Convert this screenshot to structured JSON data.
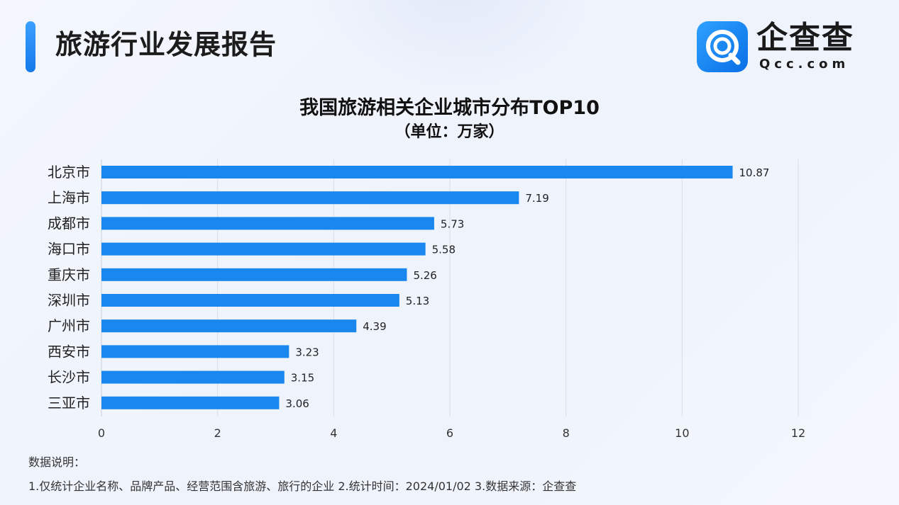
{
  "header": {
    "title": "旅游行业发展报告",
    "logo_name": "企查查",
    "logo_domain": "Qcc.com",
    "accent_color": "#1a7fee"
  },
  "chart_data": {
    "type": "bar",
    "orientation": "horizontal",
    "title": "我国旅游相关企业城市分布TOP10",
    "subtitle": "（单位：万家）",
    "categories": [
      "北京市",
      "上海市",
      "成都市",
      "海口市",
      "重庆市",
      "深圳市",
      "广州市",
      "西安市",
      "长沙市",
      "三亚市"
    ],
    "values": [
      10.87,
      7.19,
      5.73,
      5.58,
      5.26,
      5.13,
      4.39,
      3.23,
      3.15,
      3.06
    ],
    "value_labels": [
      "10.87",
      "7.19",
      "5.73",
      "5.58",
      "5.26",
      "5.13",
      "4.39",
      "3.23",
      "3.15",
      "3.06"
    ],
    "xlim": [
      0,
      12
    ],
    "x_ticks": [
      0,
      2,
      4,
      6,
      8,
      10,
      12
    ],
    "grid": true,
    "bar_color": "#1a87ee",
    "xlabel": "",
    "ylabel": ""
  },
  "notes": {
    "heading": "数据说明：",
    "text": "1.仅统计企业名称、品牌产品、经营范围含旅游、旅行的企业   2.统计时间：2024/01/02   3.数据来源：企查查"
  }
}
